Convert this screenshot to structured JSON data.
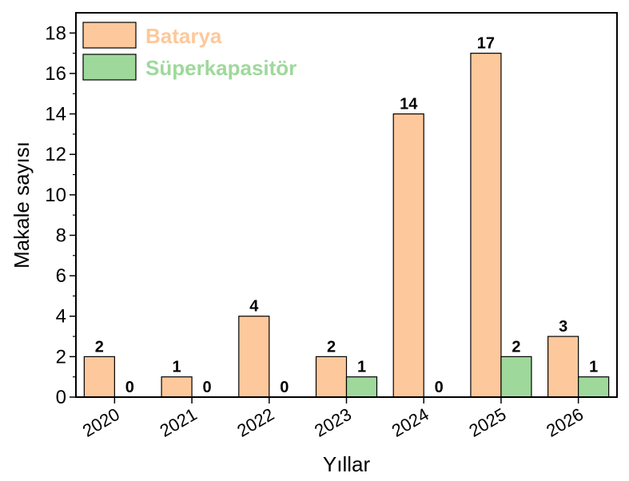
{
  "chart_data": {
    "type": "bar",
    "categories": [
      "2020",
      "2021",
      "2022",
      "2023",
      "2024",
      "2025",
      "2026"
    ],
    "series": [
      {
        "name": "Batarya",
        "values": [
          2,
          1,
          4,
          2,
          14,
          17,
          3
        ],
        "color": "#fdc89b"
      },
      {
        "name": "Süperkapasitör",
        "values": [
          0,
          0,
          0,
          1,
          0,
          2,
          1
        ],
        "color": "#9ed99b"
      }
    ],
    "xlabel": "Yıllar",
    "ylabel": "Makale sayısı",
    "ylim": [
      0,
      19
    ],
    "yticks": [
      0,
      2,
      4,
      6,
      8,
      10,
      12,
      14,
      16,
      18
    ],
    "legend_position": "top-left",
    "grid": false,
    "legend_text_colors": [
      "#fdc89b",
      "#9ed99b"
    ]
  }
}
